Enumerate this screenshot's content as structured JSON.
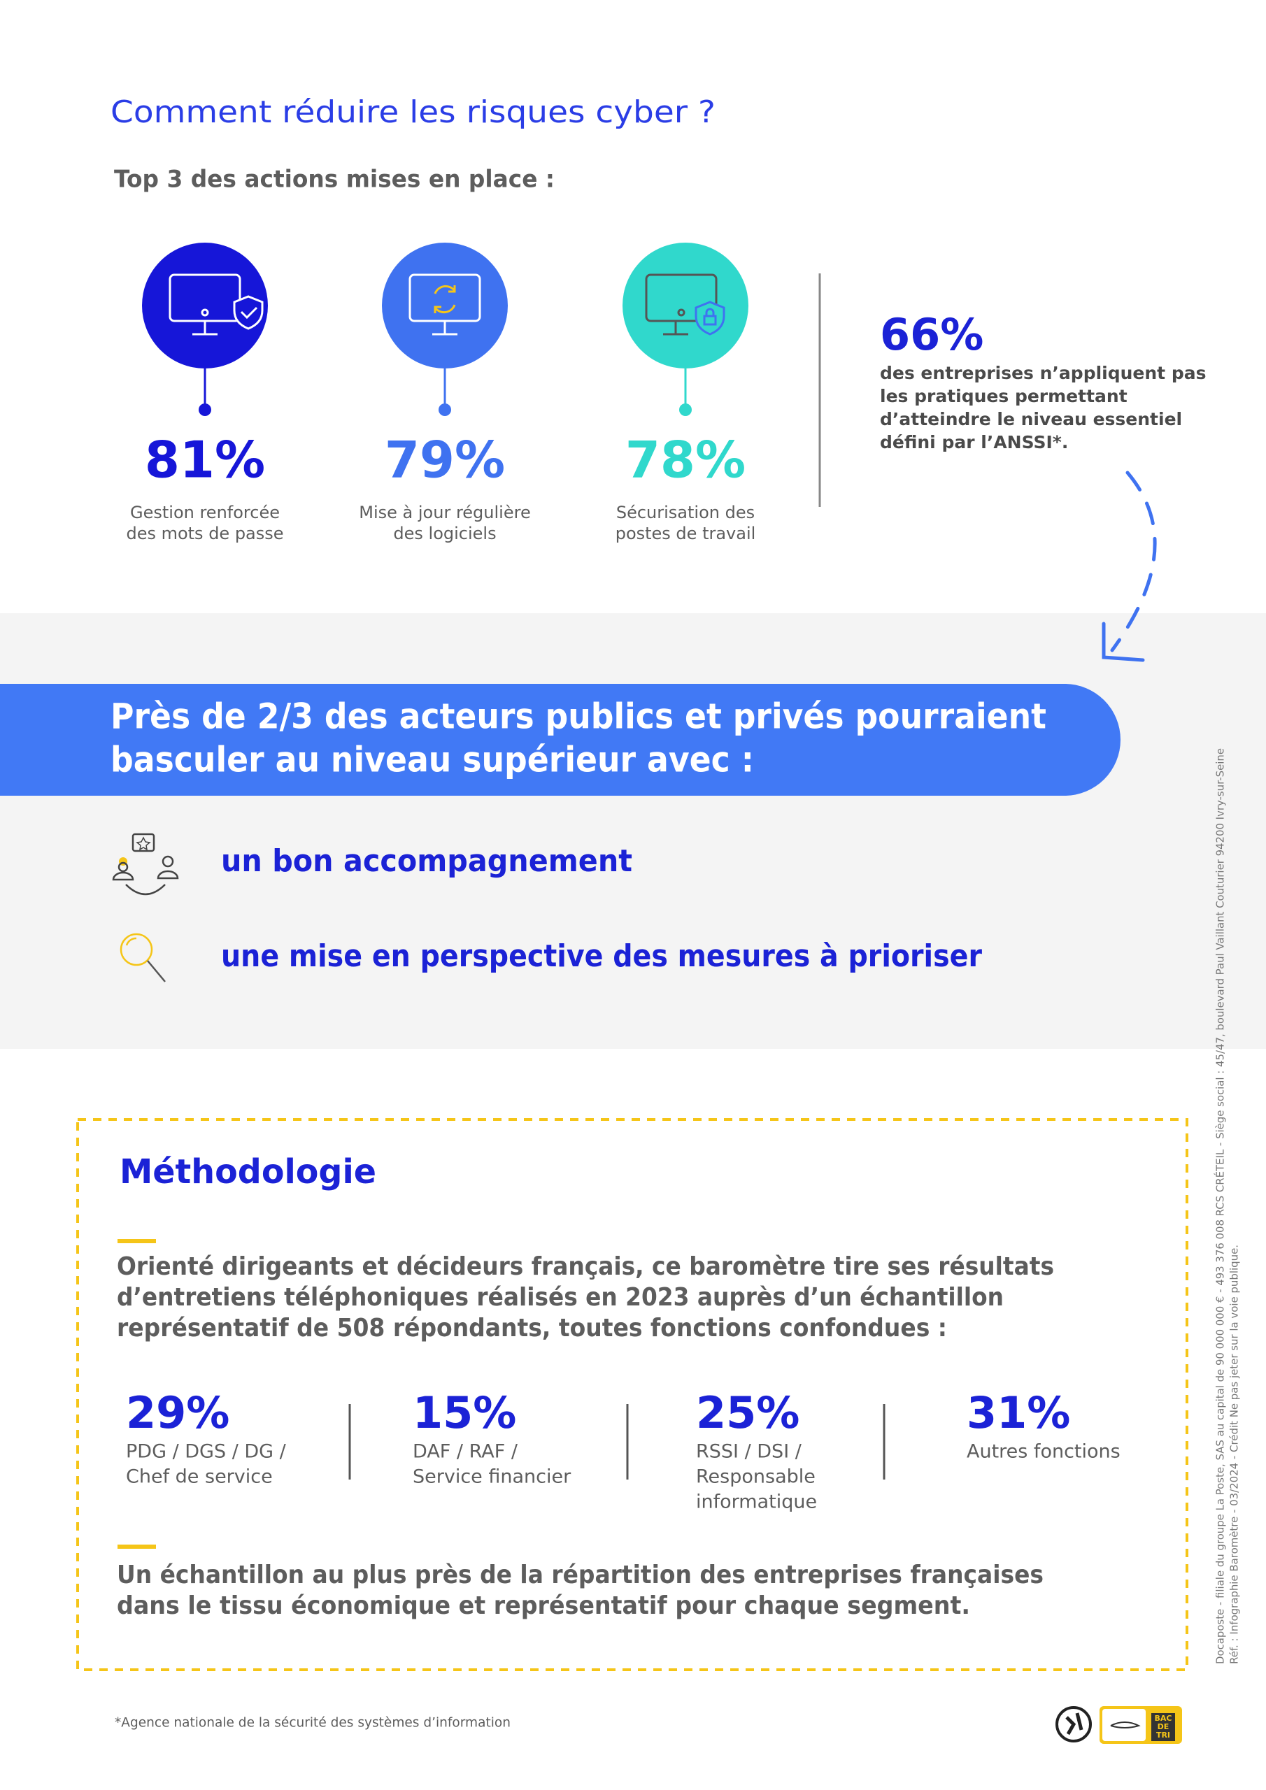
{
  "header": {
    "title": "Comment réduire les risques cyber ?",
    "subtitle": "Top 3 des actions mises en place :"
  },
  "actions": [
    {
      "value": "81%",
      "label_lines": [
        "Gestion renforcée",
        "des mots de passe"
      ]
    },
    {
      "value": "79%",
      "label_lines": [
        "Mise à jour régulière",
        "des logiciels"
      ]
    },
    {
      "value": "78%",
      "label_lines": [
        "Sécurisation des",
        "postes de travail"
      ]
    }
  ],
  "highlight": {
    "value": "66%",
    "lines": [
      "des entreprises n’appliquent pas",
      "les pratiques permettant",
      "d’atteindre le niveau essentiel",
      "défini par l’ANSSI*."
    ]
  },
  "banner": {
    "lines": [
      "Près de 2/3 des acteurs publics et privés pourraient",
      "basculer au niveau supérieur avec :"
    ]
  },
  "levers": [
    "un bon accompagnement",
    "une mise en perspective des mesures à prioriser"
  ],
  "methodology": {
    "title": "Méthodologie",
    "intro_lines": [
      "Orienté dirigeants et décideurs français, ce baromètre tire ses résultats",
      "d’entretiens téléphoniques réalisés en 2023 auprès d’un échantillon",
      "représentatif de 508 répondants, toutes fonctions confondues :"
    ],
    "stats": [
      {
        "value": "29%",
        "lines": [
          "PDG / DGS / DG /",
          "Chef de service"
        ]
      },
      {
        "value": "15%",
        "lines": [
          "DAF / RAF /",
          "Service financier"
        ]
      },
      {
        "value": "25%",
        "lines": [
          "RSSI / DSI /",
          "Responsable",
          "informatique"
        ]
      },
      {
        "value": "31%",
        "lines": [
          "Autres fonctions"
        ]
      }
    ],
    "conclusion_lines": [
      "Un échantillon au plus près de la répartition des entreprises françaises",
      "dans le tissu économique et représentatif pour chaque segment."
    ]
  },
  "footnote": "*Agence nationale de la sécurité des systèmes d’information",
  "legal_lines": [
    "Docaposte - filiale du groupe La Poste, SAS au capital de 90 000 000 € - 493 376 008 RCS CRÉTEIL - Siège social : 45/47, boulevard Paul Vaillant Couturier 94200 Ivry-sur-Seine",
    "Réf. : Infographie Baromètre - 03/2024 - Crédit  Ne pas jeter sur la voie publique."
  ],
  "logos": {
    "bin_label": [
      "BAC",
      "DE",
      "TRI"
    ]
  }
}
